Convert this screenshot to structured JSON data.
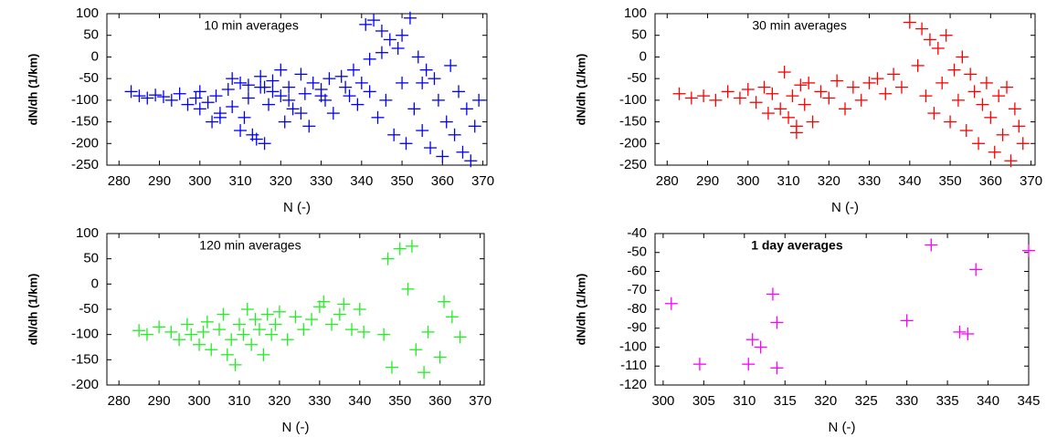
{
  "chart_data": [
    {
      "type": "scatter",
      "annotation": "10 min averages",
      "x_label": "N (-)",
      "y_label": "dN/dh (1/km)",
      "color": "#0000ff",
      "xlim": [
        277,
        371
      ],
      "ylim": [
        -250,
        100
      ],
      "xticks": [
        280,
        290,
        300,
        310,
        320,
        330,
        340,
        350,
        360,
        370
      ],
      "yticks": [
        -250,
        -200,
        -150,
        -100,
        -50,
        0,
        50,
        100
      ],
      "x": [
        283,
        285,
        287,
        289,
        291,
        293,
        295,
        297,
        299,
        300,
        302,
        304,
        305,
        307,
        308,
        310,
        311,
        312,
        313,
        315,
        316,
        317,
        318,
        320,
        321,
        322,
        323,
        325,
        326,
        327,
        328,
        330,
        331,
        332,
        333,
        335,
        336,
        337,
        338,
        339,
        340,
        341,
        342,
        343,
        344,
        345,
        346,
        347,
        348,
        349,
        350,
        351,
        352,
        353,
        354,
        355,
        356,
        357,
        358,
        359,
        360,
        361,
        362,
        363,
        364,
        365,
        366,
        367,
        368,
        369,
        300,
        305,
        310,
        315,
        320,
        325,
        330,
        312,
        318,
        322,
        308,
        303,
        314,
        316,
        345,
        350,
        355,
        342
      ],
      "values": [
        -80,
        -90,
        -95,
        -88,
        -92,
        -100,
        -85,
        -110,
        -95,
        -80,
        -105,
        -90,
        -130,
        -75,
        -115,
        -60,
        -140,
        -95,
        -180,
        -70,
        -200,
        -110,
        -55,
        -90,
        -150,
        -70,
        -120,
        -40,
        -85,
        -160,
        -60,
        -75,
        -100,
        -50,
        -130,
        -45,
        -70,
        -90,
        -30,
        -110,
        -60,
        75,
        -80,
        85,
        -140,
        60,
        -100,
        40,
        -180,
        20,
        -60,
        -200,
        90,
        -120,
        0,
        -170,
        -30,
        -210,
        -50,
        -100,
        -230,
        -150,
        -20,
        -180,
        -80,
        -220,
        -120,
        -240,
        -160,
        -100,
        -120,
        -140,
        -170,
        -45,
        -30,
        -130,
        -90,
        -65,
        -80,
        -100,
        -50,
        -150,
        -190,
        -70,
        10,
        50,
        -60,
        -5
      ]
    },
    {
      "type": "scatter",
      "annotation": "30 min averages",
      "x_label": "N (-)",
      "y_label": "dN/dh (1/km)",
      "color": "#ff0000",
      "xlim": [
        277,
        371
      ],
      "ylim": [
        -250,
        100
      ],
      "xticks": [
        280,
        290,
        300,
        310,
        320,
        330,
        340,
        350,
        360,
        370
      ],
      "yticks": [
        -250,
        -200,
        -150,
        -100,
        -50,
        0,
        50,
        100
      ],
      "x": [
        283,
        286,
        289,
        292,
        295,
        298,
        300,
        302,
        304,
        306,
        308,
        309,
        310,
        311,
        312,
        313,
        314,
        315,
        316,
        318,
        320,
        322,
        324,
        326,
        328,
        330,
        332,
        334,
        336,
        338,
        340,
        342,
        343,
        344,
        345,
        346,
        347,
        348,
        349,
        350,
        351,
        352,
        353,
        354,
        355,
        356,
        357,
        358,
        359,
        360,
        361,
        362,
        363,
        364,
        365,
        366,
        367,
        368,
        305,
        312
      ],
      "values": [
        -85,
        -95,
        -90,
        -100,
        -80,
        -95,
        -75,
        -105,
        -70,
        -85,
        -120,
        -35,
        -140,
        -90,
        -175,
        -65,
        -110,
        -60,
        -150,
        -80,
        -95,
        -55,
        -120,
        -70,
        -100,
        -60,
        -50,
        -85,
        -40,
        -70,
        80,
        -20,
        65,
        -90,
        40,
        -130,
        20,
        -60,
        50,
        -150,
        -30,
        -100,
        0,
        -170,
        -40,
        -80,
        -200,
        -110,
        -60,
        -140,
        -220,
        -90,
        -180,
        -70,
        -240,
        -120,
        -160,
        -200,
        -130,
        -160
      ]
    },
    {
      "type": "scatter",
      "annotation": "120 min averages",
      "x_label": "N (-)",
      "y_label": "dN/dh (1/km)",
      "color": "#22ee22",
      "xlim": [
        277,
        371
      ],
      "ylim": [
        -200,
        100
      ],
      "xticks": [
        280,
        290,
        300,
        310,
        320,
        330,
        340,
        350,
        360,
        370
      ],
      "yticks": [
        -200,
        -150,
        -100,
        -50,
        0,
        50,
        100
      ],
      "x": [
        285,
        287,
        290,
        293,
        295,
        297,
        298,
        300,
        301,
        302,
        303,
        305,
        306,
        307,
        308,
        309,
        310,
        311,
        312,
        313,
        314,
        315,
        316,
        317,
        318,
        319,
        320,
        322,
        324,
        326,
        328,
        330,
        331,
        333,
        335,
        336,
        338,
        340,
        341,
        346,
        347,
        348,
        350,
        352,
        353,
        354,
        356,
        357,
        360,
        361,
        363,
        365
      ],
      "values": [
        -92,
        -100,
        -85,
        -95,
        -110,
        -80,
        -100,
        -120,
        -95,
        -75,
        -130,
        -90,
        -60,
        -140,
        -110,
        -160,
        -80,
        -100,
        -50,
        -120,
        -70,
        -90,
        -140,
        -60,
        -100,
        -80,
        -55,
        -110,
        -65,
        -90,
        -70,
        -45,
        -35,
        -80,
        -60,
        -40,
        -90,
        -50,
        -95,
        -100,
        50,
        -165,
        70,
        -10,
        75,
        -130,
        -175,
        -95,
        -145,
        -35,
        -65,
        -105
      ]
    },
    {
      "type": "scatter",
      "annotation": "1 day averages",
      "x_label": "N (-)",
      "y_label": "dN/dh (1/km)",
      "color": "#ff00ff",
      "xlim": [
        299,
        345
      ],
      "ylim": [
        -120,
        -40
      ],
      "xticks": [
        300,
        305,
        310,
        315,
        320,
        325,
        330,
        335,
        340,
        345
      ],
      "yticks": [
        -120,
        -110,
        -100,
        -90,
        -80,
        -70,
        -60,
        -50,
        -40
      ],
      "x": [
        301,
        304.5,
        310.5,
        311,
        312,
        313.5,
        314,
        314,
        330,
        333,
        336.5,
        337.5,
        338.5,
        345
      ],
      "values": [
        -77,
        -109,
        -109,
        -96,
        -100,
        -72,
        -87,
        -111,
        -86,
        -46,
        -92,
        -93,
        -59,
        -49
      ]
    }
  ]
}
